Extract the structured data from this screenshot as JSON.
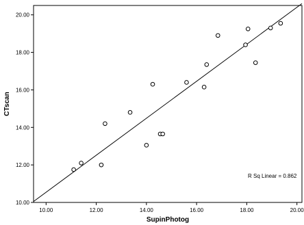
{
  "chart_data": {
    "type": "scatter",
    "xlabel": "SupinPhotog",
    "ylabel": "CTscan",
    "xlim": [
      9.5,
      20.2
    ],
    "ylim": [
      10.0,
      20.5
    ],
    "x_ticks": [
      10.0,
      12.0,
      14.0,
      16.0,
      18.0,
      20.0
    ],
    "y_ticks": [
      10.0,
      12.0,
      14.0,
      16.0,
      18.0,
      20.0
    ],
    "x_tick_labels": [
      "10.00",
      "12.00",
      "14.00",
      "16.00",
      "18.00",
      "20.00"
    ],
    "y_tick_labels": [
      "10.00",
      "12.00",
      "14.00",
      "16.00",
      "18.00",
      "20.00"
    ],
    "grid": false,
    "points": [
      {
        "x": 11.1,
        "y": 11.75
      },
      {
        "x": 11.4,
        "y": 12.1
      },
      {
        "x": 12.2,
        "y": 12.0
      },
      {
        "x": 12.35,
        "y": 14.2
      },
      {
        "x": 13.35,
        "y": 14.8
      },
      {
        "x": 14.0,
        "y": 13.05
      },
      {
        "x": 14.25,
        "y": 16.3
      },
      {
        "x": 14.55,
        "y": 13.65
      },
      {
        "x": 14.65,
        "y": 13.65
      },
      {
        "x": 15.6,
        "y": 16.4
      },
      {
        "x": 16.3,
        "y": 16.15
      },
      {
        "x": 16.4,
        "y": 17.35
      },
      {
        "x": 16.85,
        "y": 18.9
      },
      {
        "x": 17.95,
        "y": 18.4
      },
      {
        "x": 18.05,
        "y": 19.25
      },
      {
        "x": 18.35,
        "y": 17.45
      },
      {
        "x": 18.95,
        "y": 19.3
      },
      {
        "x": 19.35,
        "y": 19.55
      }
    ],
    "fit_line": {
      "x": [
        9.5,
        20.2
      ],
      "y": [
        10.05,
        20.6
      ]
    },
    "annotation": "R Sq Linear = 0.862"
  },
  "colors": {
    "axis": "#000000",
    "marker_edge": "#000000",
    "marker_fill": "#ffffff",
    "fit_line": "#000000",
    "background": "#ffffff"
  }
}
